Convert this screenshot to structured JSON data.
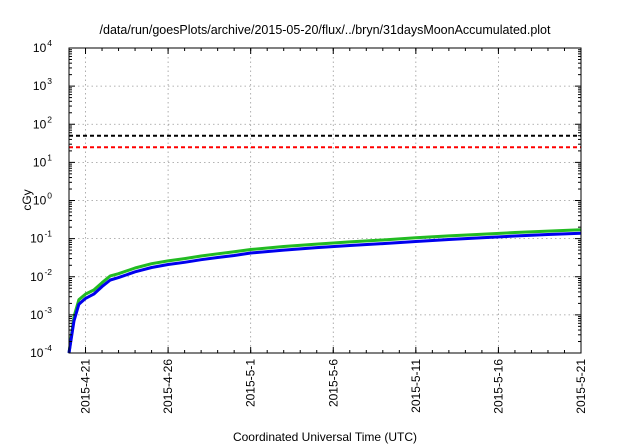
{
  "chart_data": {
    "type": "line",
    "title": "/data/run/goesPlots/archive/2015-05-20/flux/../bryn/31daysMoonAccumulated.plot",
    "xlabel": "Coordinated Universal Time (UTC)",
    "ylabel": "cGy",
    "yscale": "log",
    "ylim": [
      0.0001,
      10000
    ],
    "xlim": [
      "2015-04-20",
      "2015-05-21"
    ],
    "grid": true,
    "y_ticks": [
      {
        "value": 0.0001,
        "base": "10",
        "exp": "-4"
      },
      {
        "value": 0.001,
        "base": "10",
        "exp": "-3"
      },
      {
        "value": 0.01,
        "base": "10",
        "exp": "-2"
      },
      {
        "value": 0.1,
        "base": "10",
        "exp": "-1"
      },
      {
        "value": 1,
        "base": "10",
        "exp": "0"
      },
      {
        "value": 10,
        "base": "10",
        "exp": "1"
      },
      {
        "value": 100,
        "base": "10",
        "exp": "2"
      },
      {
        "value": 1000,
        "base": "10",
        "exp": "3"
      },
      {
        "value": 10000,
        "base": "10",
        "exp": "4"
      }
    ],
    "x_ticks": [
      "2015-4-21",
      "2015-4-26",
      "2015-5-1",
      "2015-5-6",
      "2015-5-11",
      "2015-5-16",
      "2015-5-21"
    ],
    "reference_lines": [
      {
        "value": 50,
        "color": "#000000",
        "style": "dashed"
      },
      {
        "value": 25,
        "color": "#ff0000",
        "style": "dashed"
      }
    ],
    "series": [
      {
        "color": "#22bb22",
        "points": [
          [
            "2015-04-20",
            0.0001
          ],
          [
            "2015-04-20.3",
            0.0009
          ],
          [
            "2015-04-20.6",
            0.0025
          ],
          [
            "2015-04-21",
            0.0035
          ],
          [
            "2015-04-21.5",
            0.0045
          ],
          [
            "2015-04-22",
            0.007
          ],
          [
            "2015-04-22.5",
            0.0105
          ],
          [
            "2015-04-23",
            0.012
          ],
          [
            "2015-04-24",
            0.017
          ],
          [
            "2015-04-25",
            0.022
          ],
          [
            "2015-04-26",
            0.026
          ],
          [
            "2015-04-27",
            0.03
          ],
          [
            "2015-04-28",
            0.035
          ],
          [
            "2015-04-29",
            0.04
          ],
          [
            "2015-04-30",
            0.045
          ],
          [
            "2015-05-01",
            0.052
          ],
          [
            "2015-05-03",
            0.062
          ],
          [
            "2015-05-05",
            0.072
          ],
          [
            "2015-05-07",
            0.082
          ],
          [
            "2015-05-09",
            0.092
          ],
          [
            "2015-05-11",
            0.105
          ],
          [
            "2015-05-13",
            0.118
          ],
          [
            "2015-05-15",
            0.13
          ],
          [
            "2015-05-17",
            0.145
          ],
          [
            "2015-05-19",
            0.158
          ],
          [
            "2015-05-21",
            0.17
          ]
        ]
      },
      {
        "color": "#0000ee",
        "points": [
          [
            "2015-04-20",
            0.0001
          ],
          [
            "2015-04-20.3",
            0.0007
          ],
          [
            "2015-04-20.6",
            0.0019
          ],
          [
            "2015-04-21",
            0.0027
          ],
          [
            "2015-04-21.5",
            0.0035
          ],
          [
            "2015-04-22",
            0.0055
          ],
          [
            "2015-04-22.5",
            0.0082
          ],
          [
            "2015-04-23",
            0.0095
          ],
          [
            "2015-04-24",
            0.0135
          ],
          [
            "2015-04-25",
            0.0175
          ],
          [
            "2015-04-26",
            0.021
          ],
          [
            "2015-04-27",
            0.024
          ],
          [
            "2015-04-28",
            0.028
          ],
          [
            "2015-04-29",
            0.032
          ],
          [
            "2015-04-30",
            0.036
          ],
          [
            "2015-05-01",
            0.042
          ],
          [
            "2015-05-03",
            0.05
          ],
          [
            "2015-05-05",
            0.058
          ],
          [
            "2015-05-07",
            0.066
          ],
          [
            "2015-05-09",
            0.074
          ],
          [
            "2015-05-11",
            0.084
          ],
          [
            "2015-05-13",
            0.095
          ],
          [
            "2015-05-15",
            0.105
          ],
          [
            "2015-05-17",
            0.117
          ],
          [
            "2015-05-19",
            0.128
          ],
          [
            "2015-05-21",
            0.138
          ]
        ]
      }
    ]
  }
}
